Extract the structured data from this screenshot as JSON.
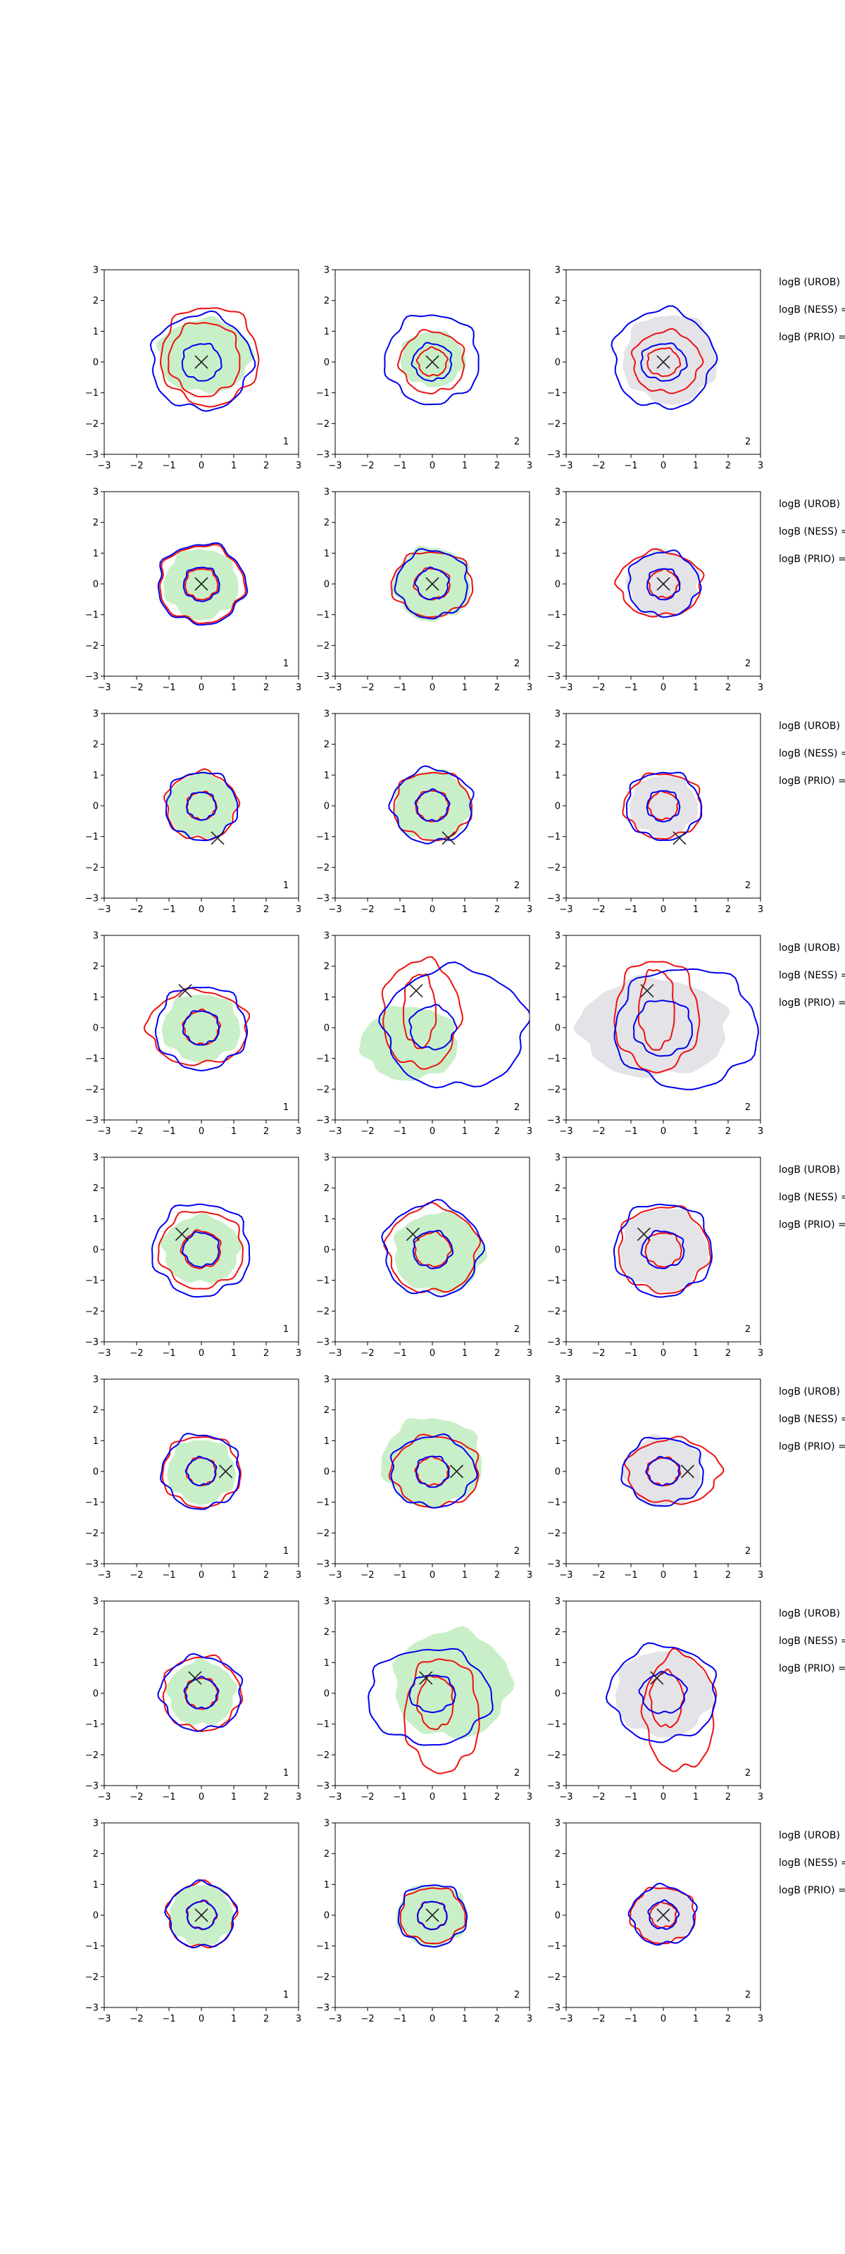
{
  "chart_data": {
    "type": "contour",
    "description_free": true,
    "axes_range": {
      "xlim": [
        -3,
        3
      ],
      "ylim": [
        -3,
        3
      ]
    },
    "ticks": [
      "−3",
      "−2",
      "−1",
      "0",
      "1",
      "2",
      "3"
    ],
    "panel_corner_labels": [
      "1",
      "2",
      "2"
    ],
    "side_labels": [
      "logB (UROB)",
      "logB (NESS) =",
      "logB (PRIO) ="
    ],
    "colors": {
      "blue": "#0000ee",
      "red": "#ee1111",
      "green_fill": "#c9efc8",
      "gray_fill": "#e4e4e8",
      "marker": "#222222"
    },
    "rows": [
      {
        "marker": [
          0.0,
          0.0
        ],
        "panels": [
          {
            "fill": "green",
            "fill_shape": [
              0.1,
              0.2,
              1.45,
              1.2
            ],
            "blue": [
              [
                0.0,
                0.0,
                1.55,
                1.55
              ],
              [
                0.0,
                0.0,
                0.6,
                0.6
              ]
            ],
            "red": [
              [
                0.25,
                0.2,
                1.5,
                1.6
              ],
              [
                0.1,
                0.1,
                1.1,
                1.2
              ]
            ]
          },
          {
            "fill": "green",
            "fill_shape": [
              0.0,
              0.1,
              1.0,
              0.9
            ],
            "blue": [
              [
                0.0,
                0.1,
                1.45,
                1.45
              ],
              [
                0.0,
                0.0,
                0.6,
                0.6
              ]
            ],
            "red": [
              [
                0.0,
                0.0,
                1.0,
                1.0
              ],
              [
                0.0,
                0.0,
                0.45,
                0.45
              ]
            ]
          },
          {
            "fill": "gray",
            "fill_shape": [
              0.2,
              0.1,
              1.45,
              1.45
            ],
            "blue": [
              [
                0.0,
                0.1,
                1.55,
                1.6
              ],
              [
                0.0,
                0.0,
                0.7,
                0.6
              ]
            ],
            "red": [
              [
                0.1,
                0.0,
                1.05,
                1.0
              ],
              [
                0.0,
                0.0,
                0.5,
                0.45
              ]
            ]
          }
        ]
      },
      {
        "marker": [
          0.0,
          0.0
        ],
        "panels": [
          {
            "fill": "green",
            "fill_shape": [
              0.0,
              0.0,
              1.15,
              1.15
            ],
            "blue": [
              [
                0.0,
                0.0,
                1.35,
                1.3
              ],
              [
                0.0,
                0.0,
                0.55,
                0.55
              ]
            ],
            "red": [
              [
                0.0,
                0.0,
                1.3,
                1.25
              ],
              [
                0.0,
                0.0,
                0.5,
                0.5
              ]
            ]
          },
          {
            "fill": "green",
            "fill_shape": [
              0.0,
              0.0,
              1.2,
              1.2
            ],
            "blue": [
              [
                0.0,
                0.0,
                1.1,
                1.1
              ],
              [
                0.0,
                0.0,
                0.5,
                0.5
              ]
            ],
            "red": [
              [
                0.0,
                0.0,
                1.25,
                1.05
              ],
              [
                0.0,
                0.0,
                0.55,
                0.5
              ]
            ]
          },
          {
            "fill": "gray",
            "fill_shape": [
              0.0,
              0.0,
              1.1,
              1.1
            ],
            "blue": [
              [
                0.0,
                0.0,
                1.1,
                1.05
              ],
              [
                0.0,
                0.0,
                0.5,
                0.5
              ]
            ],
            "red": [
              [
                -0.1,
                0.0,
                1.3,
                1.05
              ],
              [
                0.0,
                0.0,
                0.45,
                0.45
              ]
            ]
          }
        ]
      },
      {
        "marker": [
          0.5,
          -1.05
        ],
        "panels": [
          {
            "fill": "green",
            "fill_shape": [
              0.0,
              0.0,
              1.05,
              1.05
            ],
            "blue": [
              [
                0.0,
                0.0,
                1.1,
                1.1
              ],
              [
                0.0,
                0.0,
                0.45,
                0.45
              ]
            ],
            "red": [
              [
                0.0,
                0.0,
                1.1,
                1.1
              ],
              [
                0.0,
                0.0,
                0.45,
                0.45
              ]
            ]
          },
          {
            "fill": "green",
            "fill_shape": [
              0.0,
              0.0,
              1.2,
              1.15
            ],
            "blue": [
              [
                0.0,
                0.0,
                1.25,
                1.2
              ],
              [
                0.0,
                0.0,
                0.5,
                0.5
              ]
            ],
            "red": [
              [
                0.0,
                0.0,
                1.2,
                1.1
              ],
              [
                0.0,
                0.0,
                0.5,
                0.5
              ]
            ]
          },
          {
            "fill": "gray",
            "fill_shape": [
              0.0,
              0.0,
              1.05,
              1.0
            ],
            "blue": [
              [
                0.0,
                0.0,
                1.15,
                1.1
              ],
              [
                0.0,
                0.0,
                0.5,
                0.5
              ]
            ],
            "red": [
              [
                0.0,
                0.0,
                1.2,
                1.05
              ],
              [
                0.0,
                0.0,
                0.45,
                0.45
              ]
            ]
          }
        ]
      },
      {
        "marker": [
          -0.5,
          1.2
        ],
        "panels": [
          {
            "fill": "green",
            "fill_shape": [
              0.0,
              0.0,
              1.2,
              1.1
            ],
            "blue": [
              [
                0.0,
                0.0,
                1.4,
                1.35
              ],
              [
                0.0,
                0.0,
                0.55,
                0.55
              ]
            ],
            "red": [
              [
                -0.1,
                0.0,
                1.55,
                1.2
              ],
              [
                0.0,
                0.0,
                0.55,
                0.55
              ]
            ]
          },
          {
            "fill": "green",
            "fill_shape": [
              -0.7,
              -0.5,
              1.5,
              1.2
            ],
            "blue": [
              [
                0.7,
                0.0,
                2.2,
                1.95
              ],
              [
                0.0,
                0.0,
                0.7,
                0.7
              ]
            ],
            "red": [
              [
                -0.35,
                0.45,
                1.2,
                1.75
              ],
              [
                -0.4,
                0.55,
                0.5,
                1.2
              ]
            ]
          },
          {
            "fill": "gray",
            "fill_shape": [
              -0.3,
              0.0,
              2.3,
              1.6
            ],
            "blue": [
              [
                0.7,
                0.0,
                2.2,
                1.95
              ],
              [
                0.0,
                0.0,
                0.9,
                0.9
              ]
            ],
            "red": [
              [
                -0.2,
                0.4,
                1.3,
                1.8
              ],
              [
                -0.2,
                0.6,
                0.55,
                1.3
              ]
            ]
          }
        ]
      },
      {
        "marker": [
          -0.6,
          0.5
        ],
        "panels": [
          {
            "fill": "green",
            "fill_shape": [
              0.0,
              0.0,
              1.2,
              1.1
            ],
            "blue": [
              [
                0.0,
                0.0,
                1.5,
                1.5
              ],
              [
                0.0,
                0.0,
                0.55,
                0.55
              ]
            ],
            "red": [
              [
                0.0,
                0.0,
                1.3,
                1.25
              ],
              [
                0.0,
                0.0,
                0.6,
                0.6
              ]
            ]
          },
          {
            "fill": "green",
            "fill_shape": [
              0.2,
              -0.1,
              1.4,
              1.3
            ],
            "blue": [
              [
                0.0,
                0.0,
                1.5,
                1.5
              ],
              [
                0.0,
                0.0,
                0.6,
                0.6
              ]
            ],
            "red": [
              [
                0.0,
                0.0,
                1.4,
                1.4
              ],
              [
                0.0,
                0.0,
                0.55,
                0.55
              ]
            ]
          },
          {
            "fill": "gray",
            "fill_shape": [
              0.0,
              0.0,
              1.35,
              1.35
            ],
            "blue": [
              [
                0.0,
                0.0,
                1.5,
                1.5
              ],
              [
                0.0,
                0.0,
                0.65,
                0.6
              ]
            ],
            "red": [
              [
                0.0,
                0.0,
                1.4,
                1.4
              ],
              [
                0.0,
                0.0,
                0.55,
                0.55
              ]
            ]
          }
        ]
      },
      {
        "marker": [
          0.75,
          0.0
        ],
        "panels": [
          {
            "fill": "green",
            "fill_shape": [
              0.0,
              0.0,
              1.05,
              1.05
            ],
            "blue": [
              [
                0.0,
                0.0,
                1.2,
                1.2
              ],
              [
                0.0,
                0.0,
                0.45,
                0.45
              ]
            ],
            "red": [
              [
                0.0,
                0.0,
                1.2,
                1.15
              ],
              [
                0.0,
                0.0,
                0.45,
                0.45
              ]
            ]
          },
          {
            "fill": "green",
            "fill_shape": [
              0.0,
              0.3,
              1.55,
              1.45
            ],
            "blue": [
              [
                0.0,
                0.0,
                1.3,
                1.15
              ],
              [
                0.0,
                0.0,
                0.5,
                0.5
              ]
            ],
            "red": [
              [
                0.1,
                0.0,
                1.35,
                1.15
              ],
              [
                0.0,
                0.0,
                0.5,
                0.45
              ]
            ]
          },
          {
            "fill": "gray",
            "fill_shape": [
              0.0,
              0.0,
              1.2,
              1.15
            ],
            "blue": [
              [
                0.0,
                0.0,
                1.25,
                1.1
              ],
              [
                0.0,
                0.0,
                0.5,
                0.45
              ]
            ],
            "red": [
              [
                0.3,
                0.0,
                1.45,
                1.05
              ],
              [
                0.0,
                0.0,
                0.5,
                0.45
              ]
            ]
          }
        ]
      },
      {
        "marker": [
          -0.2,
          0.5
        ],
        "panels": [
          {
            "fill": "green",
            "fill_shape": [
              0.0,
              0.0,
              1.05,
              1.05
            ],
            "blue": [
              [
                0.0,
                0.0,
                1.25,
                1.2
              ],
              [
                0.0,
                0.0,
                0.5,
                0.5
              ]
            ],
            "red": [
              [
                0.0,
                0.0,
                1.2,
                1.2
              ],
              [
                0.0,
                0.0,
                0.5,
                0.5
              ]
            ]
          },
          {
            "fill": "green",
            "fill_shape": [
              0.6,
              0.3,
              1.8,
              1.75
            ],
            "blue": [
              [
                -0.1,
                -0.1,
                1.9,
                1.55
              ],
              [
                0.0,
                0.0,
                0.7,
                0.6
              ]
            ],
            "red": [
              [
                0.3,
                -0.7,
                1.15,
                1.85
              ],
              [
                0.1,
                -0.3,
                0.55,
                0.85
              ]
            ]
          },
          {
            "fill": "gray",
            "fill_shape": [
              0.0,
              0.0,
              1.5,
              1.4
            ],
            "blue": [
              [
                0.0,
                0.0,
                1.65,
                1.55
              ],
              [
                0.0,
                0.0,
                0.7,
                0.65
              ]
            ],
            "red": [
              [
                0.5,
                -0.6,
                1.1,
                1.9
              ],
              [
                0.1,
                -0.2,
                0.5,
                0.9
              ]
            ]
          }
        ]
      },
      {
        "marker": [
          0.0,
          0.0
        ],
        "panels": [
          {
            "fill": "green",
            "fill_shape": [
              0.0,
              0.0,
              1.0,
              1.0
            ],
            "blue": [
              [
                0.0,
                0.0,
                1.05,
                1.05
              ],
              [
                0.0,
                0.0,
                0.45,
                0.45
              ]
            ],
            "red": [
              [
                0.0,
                0.0,
                1.05,
                1.05
              ],
              [
                0.0,
                0.0,
                0.45,
                0.45
              ]
            ]
          },
          {
            "fill": "green",
            "fill_shape": [
              0.0,
              0.0,
              1.1,
              1.0
            ],
            "blue": [
              [
                0.0,
                0.0,
                1.05,
                1.0
              ],
              [
                0.0,
                0.0,
                0.45,
                0.45
              ]
            ],
            "red": [
              [
                0.0,
                0.0,
                1.0,
                0.9
              ],
              [
                0.0,
                0.0,
                0.45,
                0.45
              ]
            ]
          },
          {
            "fill": "gray",
            "fill_shape": [
              0.0,
              0.0,
              0.95,
              0.9
            ],
            "blue": [
              [
                0.0,
                0.0,
                1.0,
                0.95
              ],
              [
                0.0,
                0.0,
                0.45,
                0.45
              ]
            ],
            "red": [
              [
                0.0,
                0.0,
                1.0,
                0.9
              ],
              [
                0.0,
                0.0,
                0.4,
                0.4
              ]
            ]
          }
        ]
      }
    ]
  }
}
